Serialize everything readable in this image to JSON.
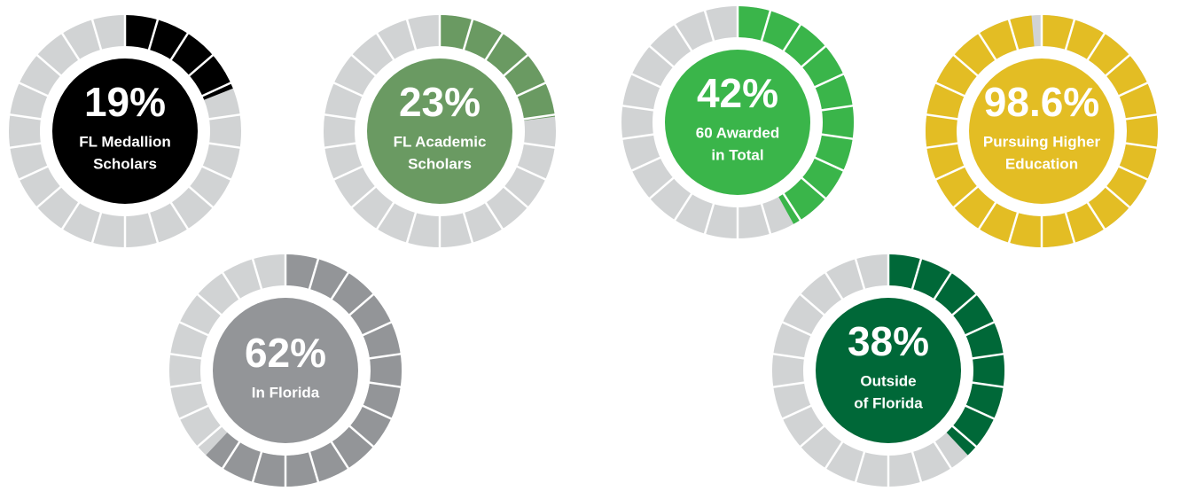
{
  "chart_data": [
    {
      "type": "donut",
      "values": [
        19
      ],
      "value_labels": [
        "19%"
      ],
      "label": [
        "FL Medallion",
        "Scholars"
      ],
      "color": "#000000"
    },
    {
      "type": "donut",
      "values": [
        23
      ],
      "value_labels": [
        "23%"
      ],
      "label": [
        "FL Academic",
        "Scholars"
      ],
      "color": "#6a9a62"
    },
    {
      "type": "donut",
      "values": [
        42
      ],
      "value_labels": [
        "42%"
      ],
      "label": [
        "60 Awarded",
        "in Total"
      ],
      "color": "#3ab54a"
    },
    {
      "type": "donut",
      "values": [
        98.6
      ],
      "value_labels": [
        "98.6%"
      ],
      "label": [
        "Pursuing Higher",
        "Education"
      ],
      "color": "#e3bd24"
    },
    {
      "type": "donut",
      "values": [
        62
      ],
      "value_labels": [
        "62%"
      ],
      "label": [
        "In Florida"
      ],
      "color": "#939598"
    },
    {
      "type": "donut",
      "values": [
        38
      ],
      "value_labels": [
        "38%"
      ],
      "label": [
        "Outside",
        "of Florida"
      ],
      "color": "#006838"
    }
  ]
}
